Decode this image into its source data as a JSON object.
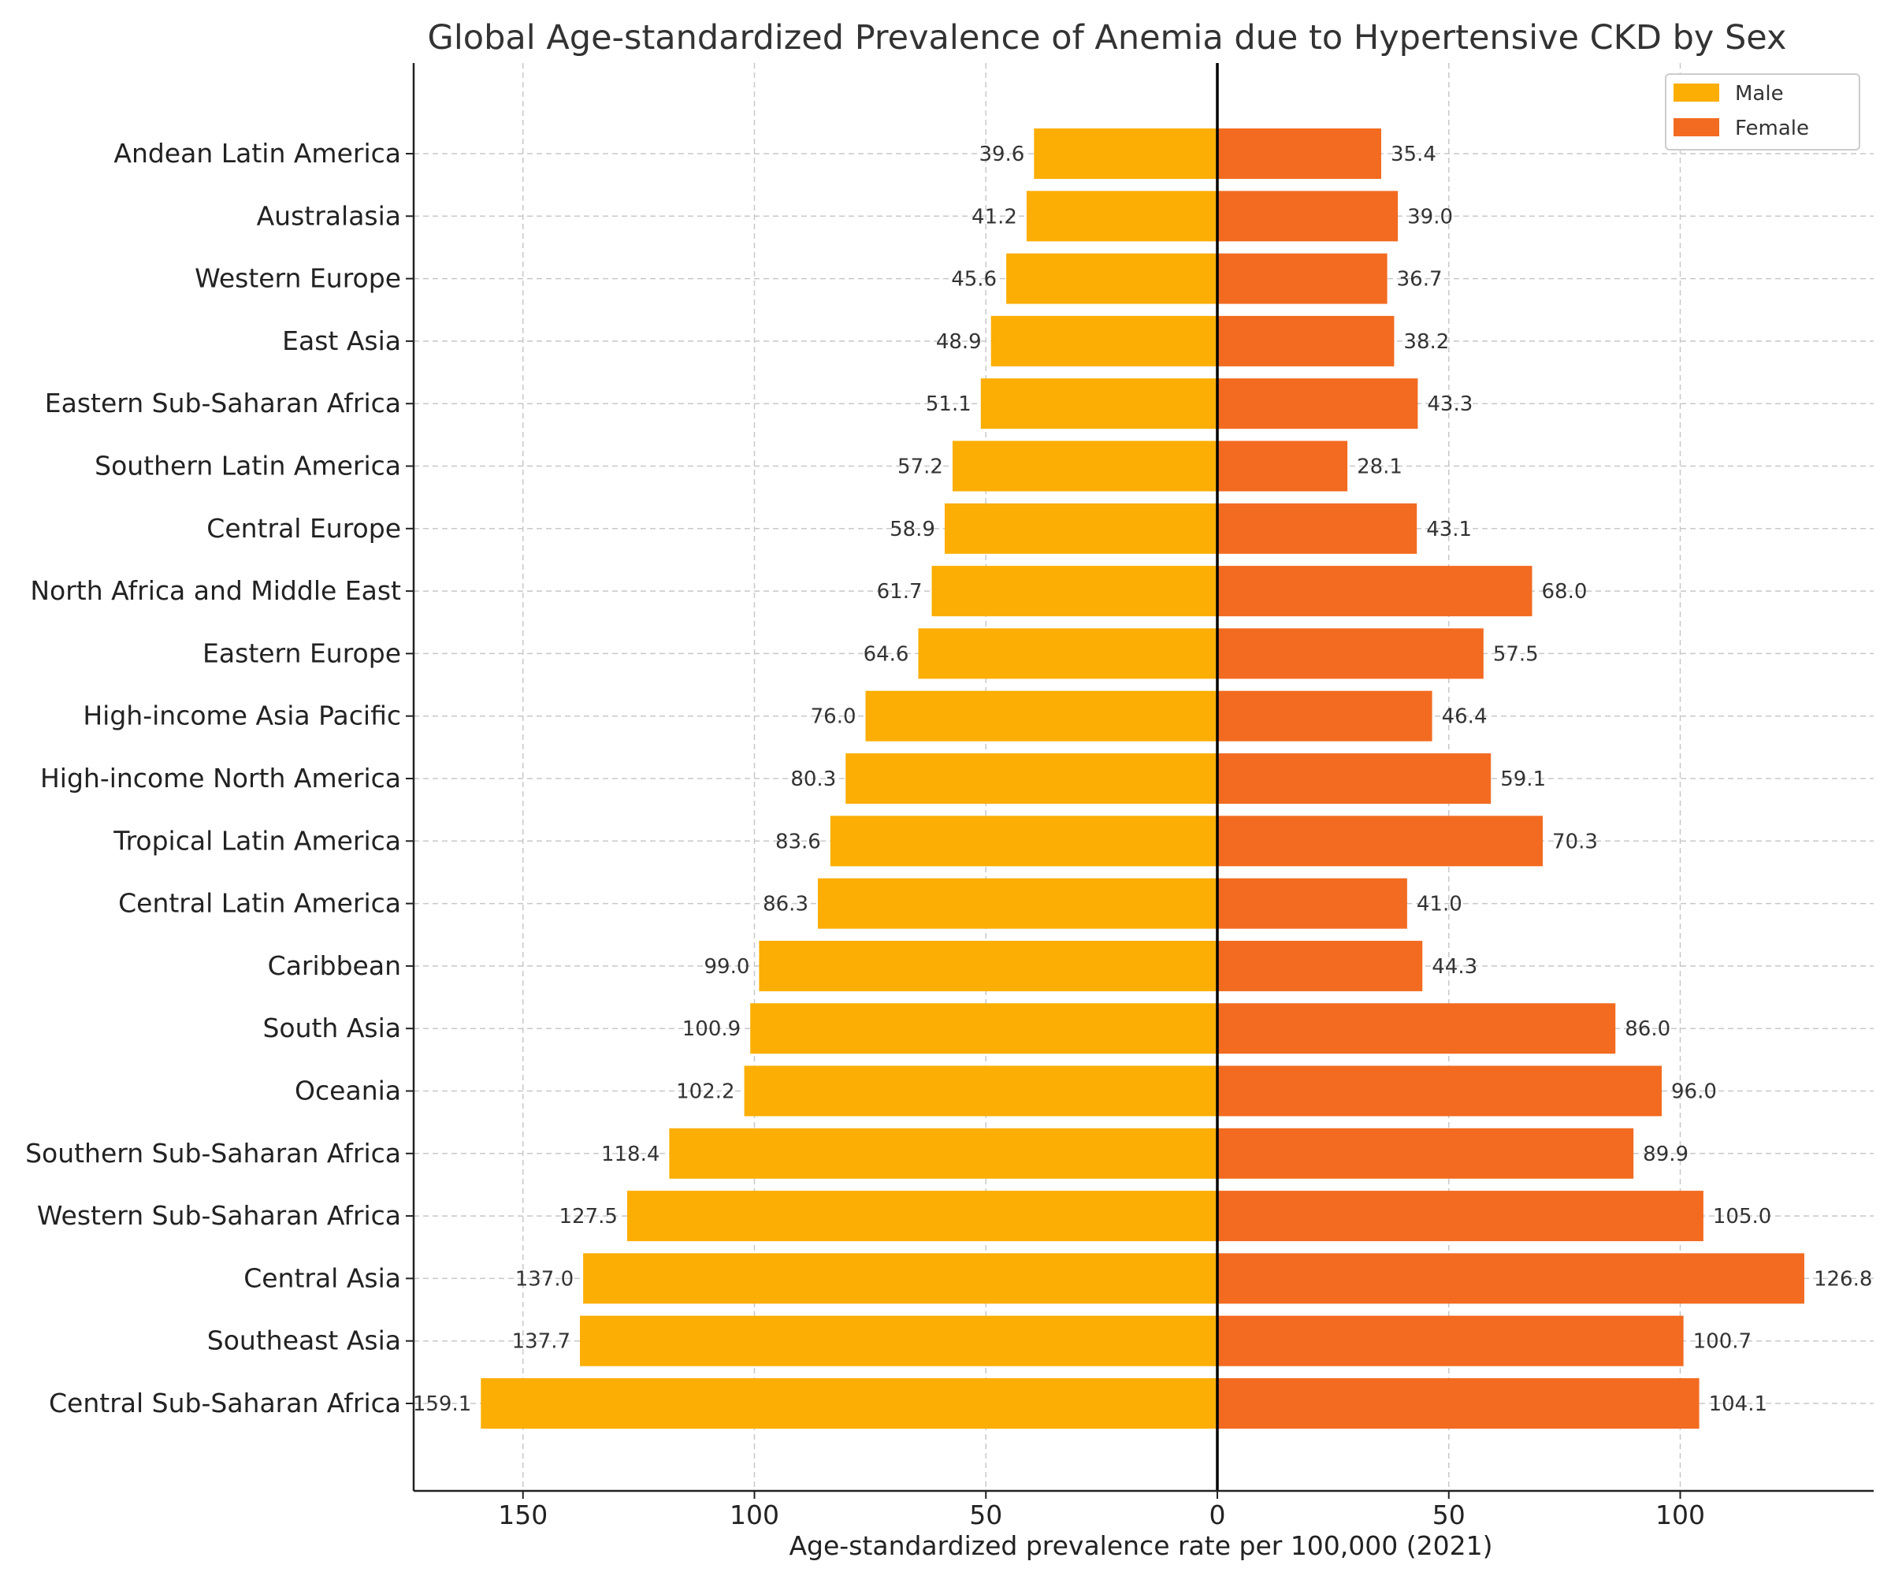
{
  "chart_data": {
    "type": "bar",
    "orientation": "horizontal-diverging",
    "title": "Global Age-standardized Prevalence of Anemia due to Hypertensive CKD by Sex",
    "xlabel": "Age-standardized prevalence rate per 100,000 (2021)",
    "ylabel": "",
    "xlim": [
      -175,
      142
    ],
    "xticks": [
      -150,
      -100,
      -50,
      0,
      50,
      100
    ],
    "xtick_labels": [
      "150",
      "100",
      "50",
      "0",
      "50",
      "100"
    ],
    "grid": true,
    "legend_position": "top-right",
    "categories": [
      "Andean Latin America",
      "Australasia",
      "Western Europe",
      "East Asia",
      "Eastern Sub-Saharan Africa",
      "Southern Latin America",
      "Central Europe",
      "North Africa and Middle East",
      "Eastern Europe",
      "High-income Asia Pacific",
      "High-income North America",
      "Tropical Latin America",
      "Central Latin America",
      "Caribbean",
      "South Asia",
      "Oceania",
      "Southern Sub-Saharan Africa",
      "Western Sub-Saharan Africa",
      "Central Asia",
      "Southeast Asia",
      "Central Sub-Saharan Africa"
    ],
    "series": [
      {
        "name": "Male",
        "color": "#FCAE04",
        "values": [
          39.6,
          41.2,
          45.6,
          48.9,
          51.1,
          57.2,
          58.9,
          61.7,
          64.6,
          76.0,
          80.3,
          83.6,
          86.3,
          99.0,
          100.9,
          102.2,
          118.4,
          127.5,
          137.0,
          137.7,
          159.1
        ]
      },
      {
        "name": "Female",
        "color": "#F26B21",
        "values": [
          35.4,
          39.0,
          36.7,
          38.2,
          43.3,
          28.1,
          43.1,
          68.0,
          57.5,
          46.4,
          59.1,
          70.3,
          41.0,
          44.3,
          86.0,
          96.0,
          89.9,
          105.0,
          126.8,
          100.7,
          104.1
        ]
      }
    ]
  }
}
